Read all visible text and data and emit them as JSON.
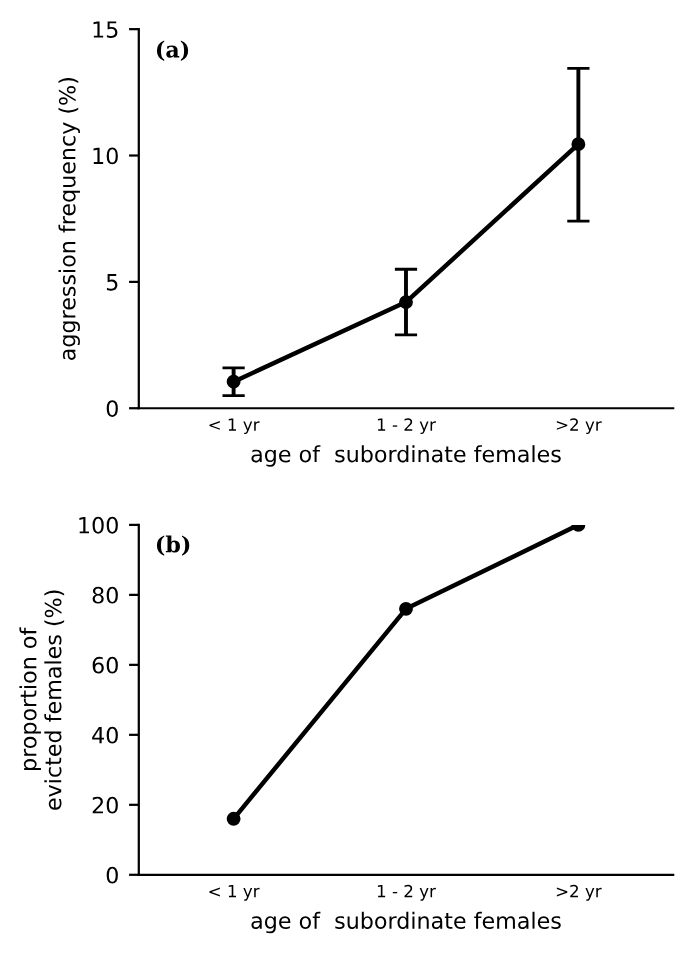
{
  "chart_data": [
    {
      "type": "line",
      "categories": [
        "< 1 yr",
        "1 - 2 yr",
        ">2 yr"
      ],
      "values": [
        1.05,
        4.2,
        10.45
      ],
      "errors": [
        [
          0.5,
          1.6
        ],
        [
          2.9,
          5.5
        ],
        [
          7.4,
          13.45
        ]
      ],
      "color": "#000000",
      "marker": "circle",
      "line_style": "solid",
      "ylim": [
        0,
        15
      ],
      "yticks": [
        0,
        5,
        10,
        15
      ],
      "xlabel": "age of  subordinate females",
      "ylabel": "aggression frequency (%)",
      "annotations": [
        "(a)"
      ],
      "grid": false,
      "legend": false
    },
    {
      "type": "line",
      "categories": [
        "< 1 yr",
        "1 - 2 yr",
        ">2 yr"
      ],
      "values": [
        16,
        76,
        100
      ],
      "color": "#000000",
      "marker": "circle",
      "line_style": "solid",
      "ylim": [
        0,
        100
      ],
      "yticks": [
        0,
        20,
        40,
        60,
        80,
        100
      ],
      "xlabel": "age of  subordinate females",
      "ylabel": "proportion of\nevicted females (%)",
      "annotations": [
        "(b)"
      ],
      "grid": false,
      "legend": false
    }
  ]
}
